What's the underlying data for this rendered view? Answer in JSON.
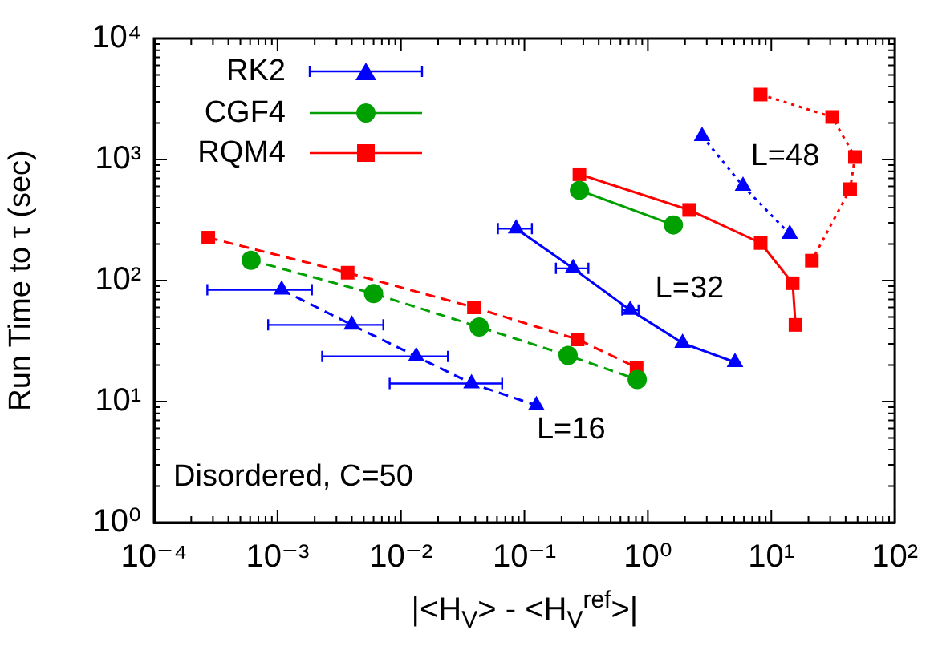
{
  "chart_data": {
    "type": "line",
    "xlabel": "|<H$_{V}$> - <H$_{V}$$^{ref}$>|",
    "ylabel": "Run Time to τ (sec)",
    "log": "xy",
    "grid": false,
    "legend": "top left",
    "xlim": [
      0.0001,
      100
    ],
    "ylim": [
      1,
      10000
    ],
    "xticks": [
      {
        "value": 0.0001,
        "label": "10⁻⁴"
      },
      {
        "value": 0.001,
        "label": "10⁻³"
      },
      {
        "value": 0.01,
        "label": "10⁻²"
      },
      {
        "value": 0.1,
        "label": "10⁻¹"
      },
      {
        "value": 1,
        "label": "10⁰"
      },
      {
        "value": 10,
        "label": "10¹"
      },
      {
        "value": 100,
        "label": "10²"
      }
    ],
    "yticks": [
      {
        "value": 1,
        "label": "10⁰"
      },
      {
        "value": 10,
        "label": "10¹"
      },
      {
        "value": 100,
        "label": "10²"
      },
      {
        "value": 1000,
        "label": "10³"
      },
      {
        "value": 10000,
        "label": "10⁴"
      }
    ],
    "series": [
      {
        "name": "RK2",
        "color": "#0000ff",
        "marker": "triangle",
        "line_style": "solid",
        "x": [
          0.0857,
          0.248,
          0.72,
          1.91,
          5.08
        ],
        "values": [
          268,
          126,
          57,
          30.4,
          21.1
        ],
        "xerrors": [
          [
            0.061,
            0.115
          ],
          [
            0.18,
            0.33
          ],
          [
            0.62,
            0.84
          ],
          null,
          null
        ]
      },
      {
        "name": "CGF4",
        "color": "#00a000",
        "marker": "circle",
        "line_style": "solid",
        "x": [
          0.279,
          1.61
        ],
        "values": [
          557,
          288
        ]
      },
      {
        "name": "RQM4",
        "color": "#ff0000",
        "marker": "square",
        "line_style": "solid",
        "x": [
          0.279,
          2.16,
          8.2,
          14.9,
          15.7
        ],
        "values": [
          755,
          383,
          204,
          95,
          43
        ]
      },
      {
        "color": "#0000ff",
        "marker": "triangle",
        "line_style": "dashed",
        "x": [
          0.00108,
          0.004,
          0.0133,
          0.0373,
          0.125
        ],
        "values": [
          84,
          43,
          23.6,
          14.1,
          9.3
        ],
        "xerrors": [
          [
            0.00027,
            0.0019
          ],
          [
            0.00084,
            0.0072
          ],
          [
            0.0023,
            0.024
          ],
          [
            0.0081,
            0.066
          ],
          null
        ]
      },
      {
        "color": "#00a000",
        "marker": "circle",
        "line_style": "dashed",
        "x": [
          0.00061,
          0.006,
          0.043,
          0.226,
          0.82
        ],
        "values": [
          147,
          78,
          41.3,
          24,
          15.2
        ]
      },
      {
        "color": "#ff0000",
        "marker": "square",
        "line_style": "dashed",
        "x": [
          0.000275,
          0.0037,
          0.039,
          0.27,
          0.81
        ],
        "values": [
          226,
          116,
          60,
          32.6,
          19.1
        ]
      },
      {
        "color": "#0000ff",
        "marker": "triangle",
        "line_style": "dotted",
        "x": [
          2.75,
          5.9,
          14.1
        ],
        "values": [
          1556,
          604,
          242
        ]
      },
      {
        "color": "#ff0000",
        "marker": "square",
        "line_style": "dotted",
        "x": [
          8.2,
          31.1,
          47.6,
          43.5,
          21.3
        ],
        "values": [
          3440,
          2244,
          1047,
          569,
          146
        ]
      }
    ],
    "annotations": [
      "L=16",
      "L=32",
      "L=48",
      "Disordered, C=50"
    ]
  }
}
